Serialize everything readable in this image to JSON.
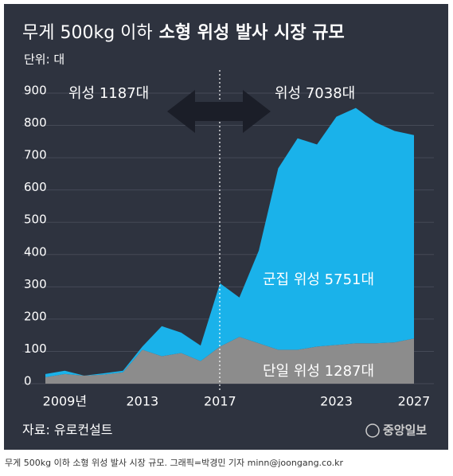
{
  "chart_data": {
    "type": "stacked_area",
    "title_prefix": "무게 500kg 이하",
    "title": "소형 위성 발사 시장 규모",
    "unit_label": "단위: 대",
    "categories": [
      null,
      "2009년",
      null,
      null,
      null,
      "2013",
      null,
      null,
      null,
      "2017",
      null,
      null,
      null,
      null,
      null,
      "2023",
      null,
      null,
      null,
      "2027"
    ],
    "series": [
      {
        "name": "단일 위성",
        "color": "#8c8c8c",
        "values": [
          20,
          30,
          25,
          28,
          35,
          105,
          85,
          95,
          70,
          115,
          145,
          125,
          105,
          105,
          115,
          120,
          125,
          125,
          128,
          140
        ]
      },
      {
        "name": "군집 위성",
        "color": "#1ab2ea",
        "values": [
          10,
          10,
          0,
          4,
          5,
          10,
          93,
          63,
          48,
          196,
          122,
          287,
          562,
          655,
          626,
          707,
          729,
          685,
          655,
          630
        ]
      }
    ],
    "ylim": [
      0,
      900
    ],
    "yticks": [
      0,
      100,
      200,
      300,
      400,
      500,
      600,
      700,
      800,
      900
    ],
    "grid": true,
    "annotations": [
      "위성 1187대",
      "위성 7038대",
      "군집 위성 5751대",
      "단일 위성 1287대"
    ],
    "source": "자료: 유로컨설트",
    "logo": "중앙일보",
    "caption": "무게 500kg 이하 소형 위성 발사 시장 규모. 그래픽=박경민 기자 minn@joongang.co.kr"
  }
}
